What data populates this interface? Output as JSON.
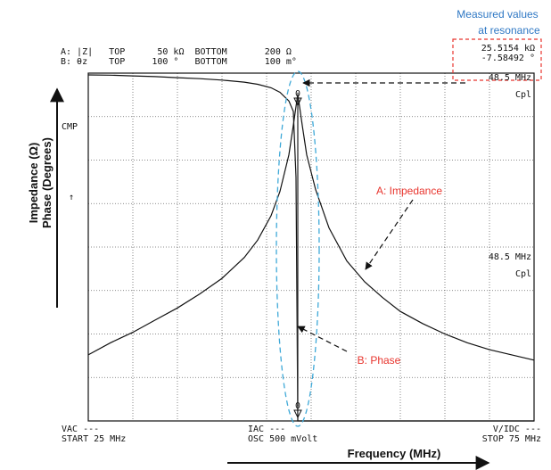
{
  "header": {
    "a_line": "A: |Z|   TOP      50 kΩ  BOTTOM       200 Ω",
    "b_line": "B: θz    TOP     100 °   BOTTOM       100 m°"
  },
  "readout": {
    "impedance": "25.5154 kΩ",
    "phase": "-7.58492 °",
    "marker_freq_top": "48.5 MHz",
    "marker_mode_top": "Cpl",
    "marker_freq_mid": "48.5 MHz",
    "marker_mode_mid": "Cpl",
    "marker_symbol": "0"
  },
  "side": {
    "cmp": "CMP",
    "arrow": "↑"
  },
  "footer": {
    "vac": "VAC ---",
    "start": "START 25 MHz",
    "iac": "IAC ---",
    "osc": "OSC 500 mVolt",
    "vidc": "V/IDC ---",
    "stop": "STOP 75 MHz"
  },
  "annotations": {
    "measured_line1": "Measured values",
    "measured_line2": "at resonance",
    "impedance": "A: Impedance",
    "phase": "B: Phase",
    "y_axis_line1": "Impedance (Ω)",
    "y_axis_line2": "Phase (Degrees)",
    "x_axis": "Frequency (MHz)"
  },
  "colors": {
    "annotation_red": "#e8352e",
    "annotation_blue": "#2f78c4",
    "ellipse": "#3fa9d8",
    "curve": "#111111",
    "grid": "#666666"
  },
  "chart_data": {
    "type": "line",
    "xlim": [
      25,
      75
    ],
    "x_divisions": 10,
    "y_divisions": 8,
    "resonance_freq": 48.5,
    "series": [
      {
        "name": "A: Impedance",
        "x": [
          25,
          27.5,
          30,
          32.5,
          35,
          37.5,
          40,
          42.5,
          44,
          45.5,
          46.5,
          47.5,
          48,
          48.5,
          49,
          49.5,
          50.5,
          52,
          54,
          56,
          58,
          60,
          62.5,
          65,
          67.5,
          70,
          72.5,
          75
        ],
        "y": [
          0.19,
          0.225,
          0.255,
          0.29,
          0.325,
          0.365,
          0.41,
          0.47,
          0.52,
          0.59,
          0.66,
          0.765,
          0.85,
          0.94,
          0.85,
          0.765,
          0.665,
          0.555,
          0.46,
          0.4,
          0.355,
          0.315,
          0.28,
          0.25,
          0.225,
          0.205,
          0.19,
          0.175
        ]
      },
      {
        "name": "B: Phase",
        "x": [
          25,
          27.5,
          30,
          32.5,
          35,
          37.5,
          40,
          42.5,
          44,
          45.5,
          46.5,
          47.5,
          48,
          48.3,
          48.5,
          48.7,
          49,
          49.5,
          50.5,
          52,
          55,
          60,
          65,
          70,
          75
        ],
        "y": [
          0.995,
          0.994,
          0.992,
          0.99,
          0.987,
          0.984,
          0.98,
          0.974,
          0.968,
          0.958,
          0.945,
          0.92,
          0.89,
          0.7,
          0.0,
          0.0,
          0.0,
          0.0,
          0.0,
          0.0,
          0.0,
          0.0,
          0.0,
          0.0,
          0.0
        ]
      }
    ]
  }
}
